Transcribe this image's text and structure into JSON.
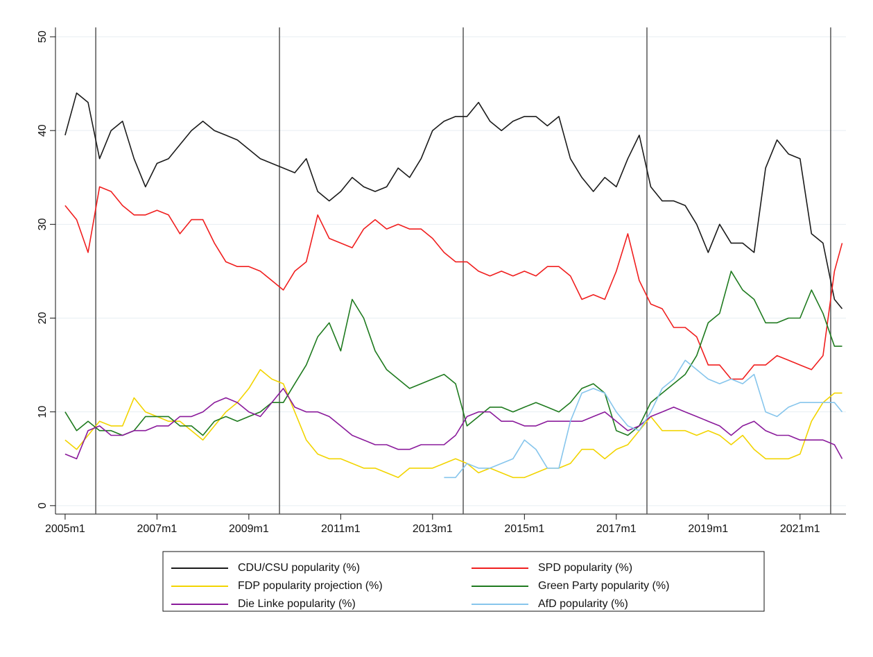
{
  "chart_data": {
    "type": "line",
    "x": [
      2005.0,
      2005.25,
      2005.5,
      2005.75,
      2006.0,
      2006.25,
      2006.5,
      2006.75,
      2007.0,
      2007.25,
      2007.5,
      2007.75,
      2008.0,
      2008.25,
      2008.5,
      2008.75,
      2009.0,
      2009.25,
      2009.5,
      2009.75,
      2010.0,
      2010.25,
      2010.5,
      2010.75,
      2011.0,
      2011.25,
      2011.5,
      2011.75,
      2012.0,
      2012.25,
      2012.5,
      2012.75,
      2013.0,
      2013.25,
      2013.5,
      2013.75,
      2014.0,
      2014.25,
      2014.5,
      2014.75,
      2015.0,
      2015.25,
      2015.5,
      2015.75,
      2016.0,
      2016.25,
      2016.5,
      2016.75,
      2017.0,
      2017.25,
      2017.5,
      2017.75,
      2018.0,
      2018.25,
      2018.5,
      2018.75,
      2019.0,
      2019.25,
      2019.5,
      2019.75,
      2020.0,
      2020.25,
      2020.5,
      2020.75,
      2021.0,
      2021.25,
      2021.5,
      2021.75,
      2021.917
    ],
    "series": [
      {
        "name": "CDU/CSU popularity (%)",
        "color": "#1a1a1a",
        "values": [
          39.5,
          44,
          43,
          37,
          40,
          41,
          37,
          34,
          36.5,
          37,
          38.5,
          40,
          41,
          40,
          39.5,
          39,
          38,
          37,
          36.5,
          36,
          35.5,
          37,
          33.5,
          32.5,
          33.5,
          35,
          34,
          33.5,
          34,
          36,
          35,
          37,
          40,
          41,
          41.5,
          41.5,
          43,
          41,
          40,
          41,
          41.5,
          41.5,
          40.5,
          41.5,
          37,
          35,
          33.5,
          35,
          34,
          37,
          39.5,
          34,
          32.5,
          32.5,
          32,
          30,
          27,
          30,
          28,
          28,
          27,
          36,
          39,
          37.5,
          37,
          29,
          28,
          22,
          21
        ]
      },
      {
        "name": "SPD popularity (%)",
        "color": "#f01e1e",
        "values": [
          32,
          30.5,
          27,
          34,
          33.5,
          32,
          31,
          31,
          31.5,
          31,
          29,
          30.5,
          30.5,
          28,
          26,
          25.5,
          25.5,
          25,
          24,
          23,
          25,
          26,
          31,
          28.5,
          28,
          27.5,
          29.5,
          30.5,
          29.5,
          30,
          29.5,
          29.5,
          28.5,
          27,
          26,
          26,
          25,
          24.5,
          25,
          24.5,
          25,
          24.5,
          25.5,
          25.5,
          24.5,
          22,
          22.5,
          22,
          25,
          29,
          24,
          21.5,
          21,
          19,
          19,
          18,
          15,
          15,
          13.5,
          13.5,
          15,
          15,
          16,
          15.5,
          15,
          14.5,
          16,
          25,
          28
        ]
      },
      {
        "name": "FDP popularity projection (%)",
        "color": "#f2d400",
        "values": [
          7,
          6,
          7.5,
          9,
          8.5,
          8.5,
          11.5,
          10,
          9.5,
          9,
          9,
          8,
          7,
          8.5,
          10,
          11,
          12.5,
          14.5,
          13.5,
          13,
          10,
          7,
          5.5,
          5,
          5,
          4.5,
          4,
          4,
          3.5,
          3,
          4,
          4,
          4,
          4.5,
          5,
          4.5,
          3.5,
          4,
          3.5,
          3,
          3,
          3.5,
          4,
          4,
          4.5,
          6,
          6,
          5,
          6,
          6.5,
          8,
          9.5,
          8,
          8,
          8,
          7.5,
          8,
          7.5,
          6.5,
          7.5,
          6,
          5,
          5,
          5,
          5.5,
          9,
          11,
          12,
          12
        ]
      },
      {
        "name": "Green Party popularity (%)",
        "color": "#1e7a1e",
        "values": [
          10,
          8,
          9,
          8,
          8,
          7.5,
          8,
          9.5,
          9.5,
          9.5,
          8.5,
          8.5,
          7.5,
          9,
          9.5,
          9,
          9.5,
          10,
          11,
          11,
          13,
          15,
          18,
          19.5,
          16.5,
          22,
          20,
          16.5,
          14.5,
          13.5,
          12.5,
          13,
          13.5,
          14,
          13,
          8.5,
          9.5,
          10.5,
          10.5,
          10,
          10.5,
          11,
          10.5,
          10,
          11,
          12.5,
          13,
          12,
          8,
          7.5,
          8.5,
          11,
          12,
          13,
          14,
          16,
          19.5,
          20.5,
          25,
          23,
          22,
          19.5,
          19.5,
          20,
          20,
          23,
          20.5,
          17,
          17
        ]
      },
      {
        "name": "Die Linke popularity  (%)",
        "color": "#8a1a9b",
        "values": [
          5.5,
          5,
          8,
          8.5,
          7.5,
          7.5,
          8,
          8,
          8.5,
          8.5,
          9.5,
          9.5,
          10,
          11,
          11.5,
          11,
          10,
          9.5,
          11,
          12.5,
          10.5,
          10,
          10,
          9.5,
          8.5,
          7.5,
          7,
          6.5,
          6.5,
          6,
          6,
          6.5,
          6.5,
          6.5,
          7.5,
          9.5,
          10,
          10,
          9,
          9,
          8.5,
          8.5,
          9,
          9,
          9,
          9,
          9.5,
          10,
          9,
          8,
          8.5,
          9.5,
          10,
          10.5,
          10,
          9.5,
          9,
          8.5,
          7.5,
          8.5,
          9,
          8,
          7.5,
          7.5,
          7,
          7,
          7,
          6.5,
          5
        ]
      },
      {
        "name": "AfD popularity (%)",
        "color": "#86c5ec",
        "values": [
          null,
          null,
          null,
          null,
          null,
          null,
          null,
          null,
          null,
          null,
          null,
          null,
          null,
          null,
          null,
          null,
          null,
          null,
          null,
          null,
          null,
          null,
          null,
          null,
          null,
          null,
          null,
          null,
          null,
          null,
          null,
          null,
          null,
          3,
          3,
          4.5,
          4,
          4,
          4.5,
          5,
          7,
          6,
          4,
          4,
          9,
          12,
          12.5,
          12,
          10,
          8.5,
          8,
          10,
          12.5,
          13.5,
          15.5,
          14.5,
          13.5,
          13,
          13.5,
          13,
          14,
          10,
          9.5,
          10.5,
          11,
          11,
          11,
          11,
          10
        ]
      }
    ],
    "xlim": [
      2004.79,
      2022.0
    ],
    "xticks": [
      {
        "value": 2005,
        "label": "2005m1"
      },
      {
        "value": 2007,
        "label": "2007m1"
      },
      {
        "value": 2009,
        "label": "2009m1"
      },
      {
        "value": 2011,
        "label": "2011m1"
      },
      {
        "value": 2013,
        "label": "2013m1"
      },
      {
        "value": 2015,
        "label": "2015m1"
      },
      {
        "value": 2017,
        "label": "2017m1"
      },
      {
        "value": 2019,
        "label": "2019m1"
      },
      {
        "value": 2021,
        "label": "2021m1"
      }
    ],
    "ylim": [
      -0.9,
      51
    ],
    "yticks": [
      0,
      10,
      20,
      30,
      40,
      50
    ],
    "vlines": [
      2005.667,
      2009.667,
      2013.667,
      2017.667,
      2021.667
    ],
    "grid": true,
    "legend": "bottom"
  }
}
